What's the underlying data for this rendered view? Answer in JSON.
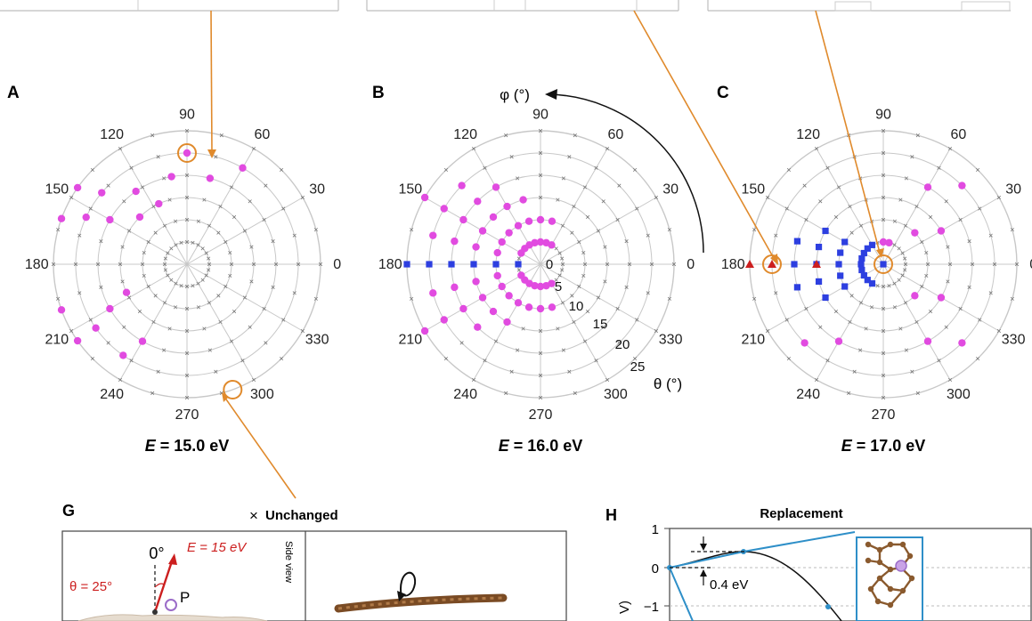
{
  "panel_letters": {
    "a": "A",
    "b": "B",
    "c": "C",
    "g": "G",
    "h": "H"
  },
  "energy_labels": [
    {
      "italic": "E",
      "rest": " = 15.0 eV"
    },
    {
      "italic": "E",
      "rest": " = 16.0 eV"
    },
    {
      "italic": "E",
      "rest": " = 17.0 eV"
    }
  ],
  "angle_labels": [
    "0",
    "30",
    "60",
    "90",
    "120",
    "150",
    "180",
    "210",
    "240",
    "270",
    "300",
    "330"
  ],
  "phi_axis_label": "φ (°)",
  "theta_axis_label": "θ (°)",
  "theta_ticks": [
    "0",
    "5",
    "10",
    "15",
    "20",
    "25"
  ],
  "panel_g": {
    "legend_symbol": "×",
    "legend_text": "Unchanged",
    "zero_label": "0°",
    "energy_label": "E = 15 eV",
    "theta_label": "θ = 25°",
    "atom_label": "P",
    "side_view_label": "Side view"
  },
  "panel_h": {
    "title": "Replacement",
    "y_ticks": [
      "1",
      "0",
      "−1"
    ],
    "barrier_label": "0.4 eV",
    "ylabel_fragment": "V)"
  },
  "colors": {
    "magenta": "#e14be0",
    "blue": "#2d3fe0",
    "red": "#cc1f1f",
    "orange": "#e08a2c",
    "grid": "#c8c8c8",
    "teal": "#2e8fc8",
    "brown": "#8a5a2e"
  },
  "chart_data": [
    {
      "type": "scatter",
      "subtype": "polar",
      "panel": "A",
      "title": "E = 15.0 eV",
      "angular_axis": "φ (°)",
      "radial_axis": "θ (°)",
      "r_range": [
        0,
        30
      ],
      "theta_grid_step": 30,
      "series": [
        {
          "symbol": "dot",
          "color": "#e14be0",
          "points": [
            [
              25,
              90
            ],
            [
              20,
              75
            ],
            [
              25,
              60
            ],
            [
              30,
              145
            ],
            [
              25,
              140
            ],
            [
              20,
              125
            ],
            [
              15,
              115
            ],
            [
              20,
              100
            ],
            [
              30,
              215
            ],
            [
              25,
              215
            ],
            [
              20,
              210
            ],
            [
              15,
              205
            ],
            [
              20,
              240
            ],
            [
              25,
              235
            ],
            [
              30,
              200
            ],
            [
              30,
              160
            ],
            [
              25,
              155
            ],
            [
              20,
              150
            ],
            [
              15,
              135
            ]
          ]
        }
      ],
      "annotations": [
        {
          "marker": "circle",
          "color": "#e08a2c",
          "at": [
            25,
            90
          ]
        },
        {
          "marker": "circle",
          "color": "#e08a2c",
          "at": [
            30,
            290
          ]
        }
      ],
      "background": "× at every unmarked grid node (unchanged)"
    },
    {
      "type": "scatter",
      "subtype": "polar",
      "panel": "B",
      "title": "E = 16.0 eV",
      "angular_axis": "φ (°)",
      "radial_axis": "θ (°)",
      "r_range": [
        0,
        30
      ],
      "theta_ticks": [
        0,
        5,
        10,
        15,
        20,
        25
      ],
      "series": [
        {
          "symbol": "dot",
          "color": "#e14be0",
          "points": [
            [
              5,
              60
            ],
            [
              5,
              75
            ],
            [
              5,
              90
            ],
            [
              5,
              105
            ],
            [
              5,
              120
            ],
            [
              5,
              135
            ],
            [
              5,
              150
            ],
            [
              5,
              210
            ],
            [
              5,
              225
            ],
            [
              5,
              240
            ],
            [
              5,
              255
            ],
            [
              5,
              270
            ],
            [
              5,
              285
            ],
            [
              5,
              300
            ],
            [
              10,
              75
            ],
            [
              10,
              90
            ],
            [
              10,
              105
            ],
            [
              10,
              120
            ],
            [
              10,
              135
            ],
            [
              10,
              150
            ],
            [
              10,
              165
            ],
            [
              10,
              195
            ],
            [
              10,
              210
            ],
            [
              10,
              225
            ],
            [
              10,
              240
            ],
            [
              10,
              255
            ],
            [
              10,
              270
            ],
            [
              10,
              285
            ],
            [
              15,
              105
            ],
            [
              15,
              120
            ],
            [
              15,
              135
            ],
            [
              15,
              150
            ],
            [
              15,
              165
            ],
            [
              15,
              195
            ],
            [
              15,
              210
            ],
            [
              15,
              225
            ],
            [
              15,
              240
            ],
            [
              20,
              120
            ],
            [
              20,
              135
            ],
            [
              20,
              150
            ],
            [
              20,
              165
            ],
            [
              20,
              195
            ],
            [
              20,
              210
            ],
            [
              20,
              225
            ],
            [
              25,
              135
            ],
            [
              25,
              150
            ],
            [
              25,
              165
            ],
            [
              25,
              195
            ],
            [
              25,
              210
            ],
            [
              30,
              150
            ],
            [
              30,
              210
            ]
          ]
        },
        {
          "symbol": "square",
          "color": "#2d3fe0",
          "points": [
            [
              5,
              180
            ],
            [
              10,
              180
            ],
            [
              15,
              180
            ],
            [
              20,
              180
            ],
            [
              25,
              180
            ],
            [
              30,
              180
            ]
          ]
        }
      ]
    },
    {
      "type": "scatter",
      "subtype": "polar",
      "panel": "C",
      "title": "E = 17.0 eV",
      "angular_axis": "φ (°)",
      "radial_axis": "θ (°)",
      "r_range": [
        0,
        30
      ],
      "series": [
        {
          "symbol": "square",
          "color": "#2d3fe0",
          "points": [
            [
              0,
              0
            ],
            [
              5,
              120
            ],
            [
              5,
              135
            ],
            [
              5,
              150
            ],
            [
              5,
              165
            ],
            [
              5,
              180
            ],
            [
              5,
              195
            ],
            [
              5,
              210
            ],
            [
              5,
              225
            ],
            [
              5,
              240
            ],
            [
              10,
              150
            ],
            [
              10,
              165
            ],
            [
              10,
              180
            ],
            [
              10,
              195
            ],
            [
              10,
              210
            ],
            [
              15,
              150
            ],
            [
              15,
              165
            ],
            [
              15,
              180
            ],
            [
              15,
              195
            ],
            [
              15,
              210
            ],
            [
              20,
              165
            ],
            [
              20,
              180
            ],
            [
              20,
              195
            ]
          ]
        },
        {
          "symbol": "dot",
          "color": "#e14be0",
          "points": [
            [
              5,
              90
            ],
            [
              5,
              75
            ],
            [
              10,
              45
            ],
            [
              10,
              315
            ],
            [
              15,
              30
            ],
            [
              15,
              330
            ],
            [
              20,
              60
            ],
            [
              20,
              300
            ],
            [
              25,
              45
            ],
            [
              25,
              315
            ],
            [
              20,
              240
            ],
            [
              25,
              225
            ]
          ]
        },
        {
          "symbol": "triangle",
          "color": "#cc1f1f",
          "points": [
            [
              25,
              180
            ],
            [
              30,
              180
            ],
            [
              15,
              180
            ]
          ]
        }
      ],
      "annotations": [
        {
          "marker": "circle",
          "color": "#e08a2c",
          "at": [
            25,
            180
          ]
        },
        {
          "marker": "circle",
          "color": "#e08a2c",
          "at": [
            0,
            0
          ]
        }
      ]
    }
  ]
}
